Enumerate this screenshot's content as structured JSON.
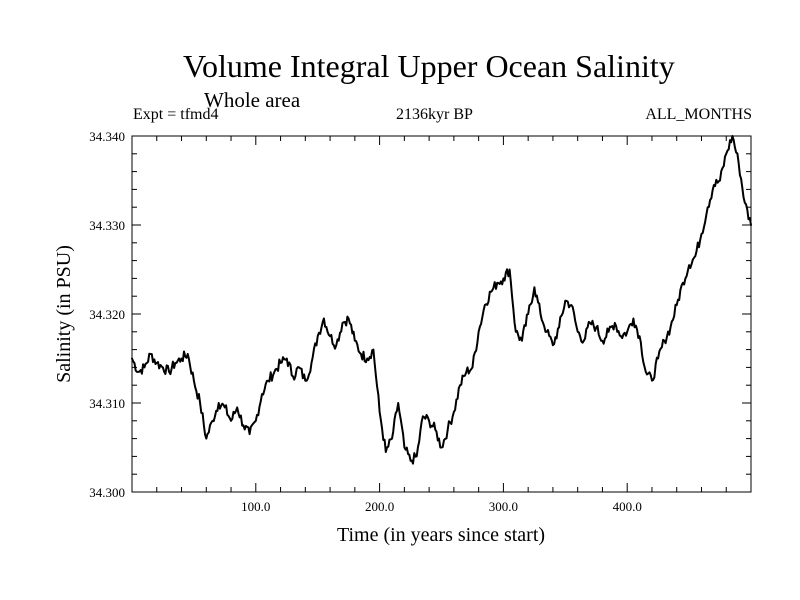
{
  "chart_data": {
    "type": "line",
    "title": "Volume Integral Upper Ocean Salinity",
    "subtitle": "Whole area",
    "experiment": "Expt = tfmd4",
    "period": "2136kyr BP",
    "season": "ALL_MONTHS",
    "xlabel": "Time (in years since start)",
    "ylabel": "Salinity (in PSU)",
    "xlim": [
      0,
      500
    ],
    "ylim": [
      34.3,
      34.34
    ],
    "xticks": [
      {
        "value": 100,
        "label": "100.0"
      },
      {
        "value": 200,
        "label": "200.0"
      },
      {
        "value": 300,
        "label": "300.0"
      },
      {
        "value": 400,
        "label": "400.0"
      }
    ],
    "yticks": [
      {
        "value": 34.3,
        "label": "34.300"
      },
      {
        "value": 34.31,
        "label": "34.310"
      },
      {
        "value": 34.32,
        "label": "34.320"
      },
      {
        "value": 34.33,
        "label": "34.330"
      },
      {
        "value": 34.34,
        "label": "34.340"
      }
    ],
    "grid": false,
    "line_color": "#000000",
    "series": [
      {
        "name": "salinity",
        "x": [
          0,
          5,
          10,
          15,
          20,
          25,
          30,
          35,
          40,
          45,
          50,
          55,
          60,
          65,
          70,
          75,
          80,
          85,
          90,
          95,
          100,
          105,
          110,
          115,
          120,
          125,
          130,
          135,
          140,
          145,
          150,
          155,
          160,
          165,
          170,
          175,
          180,
          185,
          190,
          195,
          200,
          205,
          210,
          215,
          220,
          225,
          230,
          235,
          240,
          245,
          250,
          255,
          260,
          265,
          270,
          275,
          280,
          285,
          290,
          295,
          300,
          305,
          310,
          315,
          320,
          325,
          330,
          335,
          340,
          345,
          350,
          355,
          360,
          365,
          370,
          375,
          380,
          385,
          390,
          395,
          400,
          405,
          410,
          415,
          420,
          425,
          430,
          435,
          440,
          445,
          450,
          455,
          460,
          465,
          470,
          475,
          480,
          485,
          490,
          495,
          500
        ],
        "values": [
          34.315,
          34.3135,
          34.314,
          34.3155,
          34.3145,
          34.314,
          34.3135,
          34.3145,
          34.315,
          34.3155,
          34.3125,
          34.31,
          34.306,
          34.308,
          34.31,
          34.3095,
          34.308,
          34.3095,
          34.3075,
          34.3065,
          34.308,
          34.311,
          34.3125,
          34.3135,
          34.3145,
          34.315,
          34.313,
          34.314,
          34.3125,
          34.3145,
          34.3175,
          34.3195,
          34.3175,
          34.3165,
          34.319,
          34.3195,
          34.317,
          34.3155,
          34.315,
          34.316,
          34.309,
          34.3045,
          34.306,
          34.31,
          34.305,
          34.3035,
          34.304,
          34.3085,
          34.308,
          34.307,
          34.305,
          34.307,
          34.309,
          34.312,
          34.3135,
          34.314,
          34.318,
          34.321,
          34.3225,
          34.3235,
          34.324,
          34.325,
          34.318,
          34.317,
          34.32,
          34.323,
          34.32,
          34.318,
          34.3165,
          34.3185,
          34.3215,
          34.321,
          34.318,
          34.317,
          34.319,
          34.3185,
          34.317,
          34.318,
          34.319,
          34.3175,
          34.318,
          34.3195,
          34.3175,
          34.3135,
          34.3125,
          34.315,
          34.317,
          34.3185,
          34.321,
          34.3235,
          34.3255,
          34.3265,
          34.329,
          34.332,
          34.3345,
          34.335,
          34.338,
          34.34,
          34.337,
          34.3325,
          34.33
        ]
      }
    ]
  }
}
